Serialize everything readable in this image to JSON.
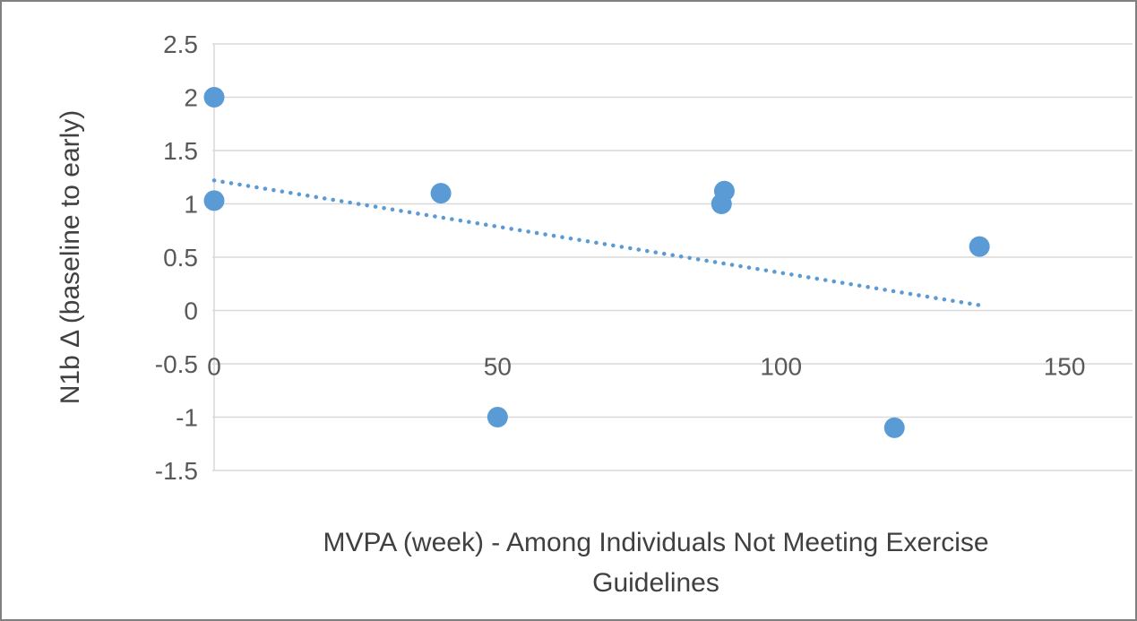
{
  "chart_data": {
    "type": "scatter",
    "title": "",
    "xlabel": "MVPA (week) - Among Individuals Not Meeting Exercise Guidelines",
    "xlabel_lines": [
      "MVPA (week) - Among Individuals Not Meeting Exercise",
      "Guidelines"
    ],
    "ylabel": "N1b Δ (baseline to early)",
    "xlim": [
      0,
      162
    ],
    "ylim": [
      -1.5,
      2.5
    ],
    "grid": true,
    "legend": "none",
    "x_ticks": [
      {
        "v": 0,
        "label": "0"
      },
      {
        "v": 50,
        "label": "50"
      },
      {
        "v": 100,
        "label": "100"
      },
      {
        "v": 150,
        "label": "150"
      }
    ],
    "y_ticks": [
      {
        "v": 2.5,
        "label": "2.5"
      },
      {
        "v": 2,
        "label": "2"
      },
      {
        "v": 1.5,
        "label": "1.5"
      },
      {
        "v": 1,
        "label": "1"
      },
      {
        "v": 0.5,
        "label": "0.5"
      },
      {
        "v": 0,
        "label": "0"
      },
      {
        "v": -0.5,
        "label": "-0.5"
      },
      {
        "v": -1,
        "label": "-1"
      },
      {
        "v": -1.5,
        "label": "-1.5"
      }
    ],
    "points": [
      {
        "x": 0,
        "y": 2.0
      },
      {
        "x": 0,
        "y": 1.03
      },
      {
        "x": 40,
        "y": 1.1
      },
      {
        "x": 50,
        "y": -1.0
      },
      {
        "x": 90,
        "y": 1.12
      },
      {
        "x": 89.5,
        "y": 1.0
      },
      {
        "x": 120,
        "y": -1.1
      },
      {
        "x": 135,
        "y": 0.6
      }
    ],
    "trendline": {
      "style": "dotted",
      "x1": 0,
      "y1": 1.22,
      "x2": 135,
      "y2": 0.05
    },
    "colors": {
      "marker": "#5B9BD5",
      "trendline": "#5B9BD5",
      "gridline": "#D9D9D9",
      "axis_line": "#D9D9D9",
      "tick_label": "#595959",
      "axis_title": "#404040"
    }
  }
}
